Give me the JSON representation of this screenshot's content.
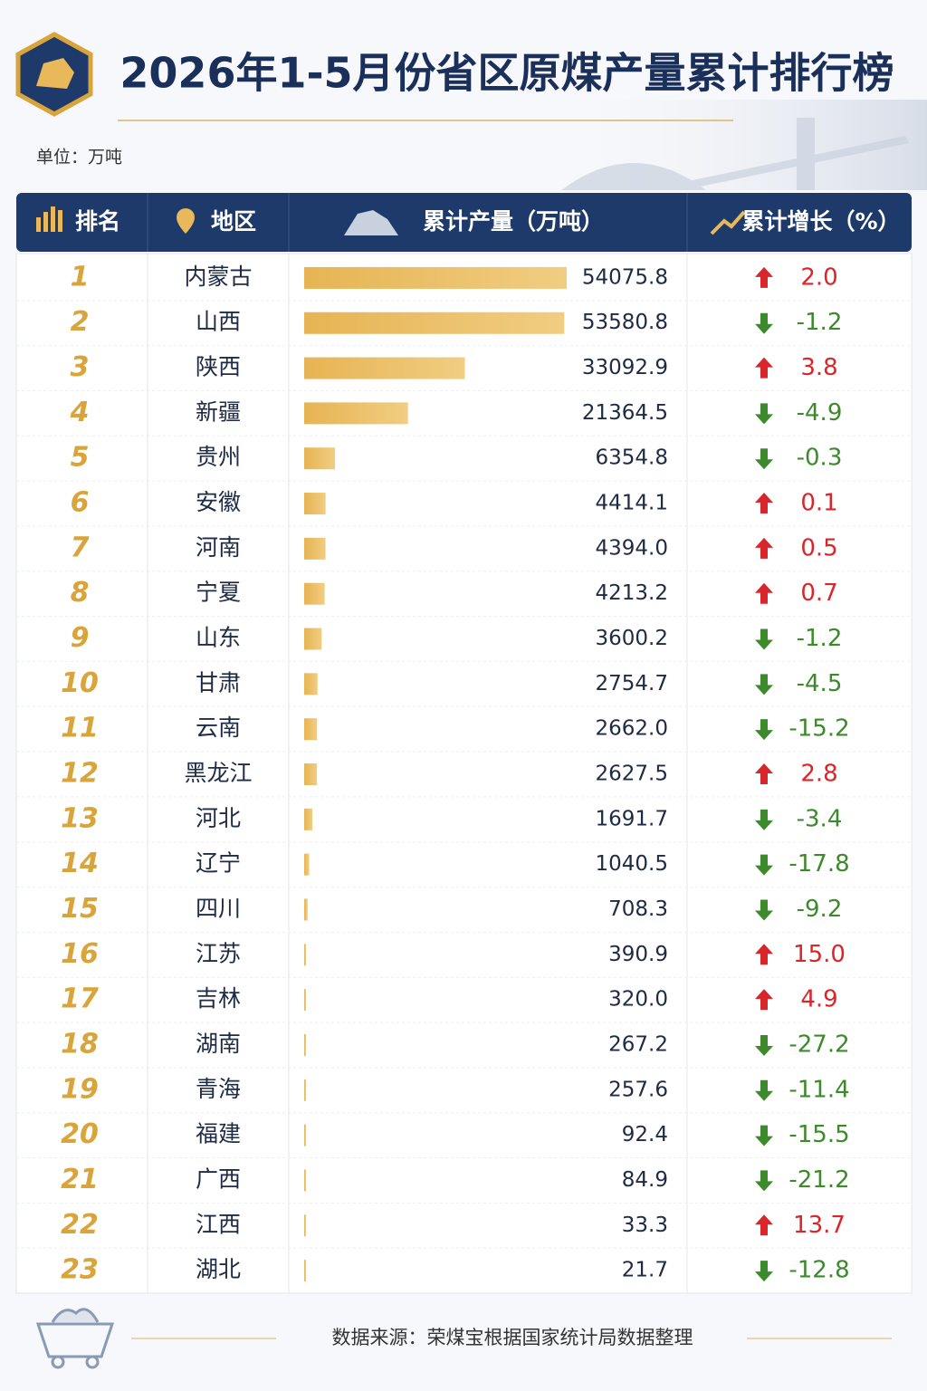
{
  "header": {
    "title": "2026年1-5月份省区原煤产量累计排行榜",
    "unit": "单位：万吨"
  },
  "table": {
    "columns": [
      "排名",
      "地区",
      "累计产量（万吨）",
      "累计增长（%）"
    ],
    "rows": [
      {
        "rank": "1",
        "region": "内蒙古",
        "production": "54075.8",
        "growth": "2.0"
      },
      {
        "rank": "2",
        "region": "山西",
        "production": "53580.8",
        "growth": "-1.2"
      },
      {
        "rank": "3",
        "region": "陕西",
        "production": "33092.9",
        "growth": "3.8"
      },
      {
        "rank": "4",
        "region": "新疆",
        "production": "21364.5",
        "growth": "-4.9"
      },
      {
        "rank": "5",
        "region": "贵州",
        "production": "6354.8",
        "growth": "-0.3"
      },
      {
        "rank": "6",
        "region": "安徽",
        "production": "4414.1",
        "growth": "0.1"
      },
      {
        "rank": "7",
        "region": "河南",
        "production": "4394.0",
        "growth": "0.5"
      },
      {
        "rank": "8",
        "region": "宁夏",
        "production": "4213.2",
        "growth": "0.7"
      },
      {
        "rank": "9",
        "region": "山东",
        "production": "3600.2",
        "growth": "-1.2"
      },
      {
        "rank": "10",
        "region": "甘肃",
        "production": "2754.7",
        "growth": "-4.5"
      },
      {
        "rank": "11",
        "region": "云南",
        "production": "2662.0",
        "growth": "-15.2"
      },
      {
        "rank": "12",
        "region": "黑龙江",
        "production": "2627.5",
        "growth": "2.8"
      },
      {
        "rank": "13",
        "region": "河北",
        "production": "1691.7",
        "growth": "-3.4"
      },
      {
        "rank": "14",
        "region": "辽宁",
        "production": "1040.5",
        "growth": "-17.8"
      },
      {
        "rank": "15",
        "region": "四川",
        "production": "708.3",
        "growth": "-9.2"
      },
      {
        "rank": "16",
        "region": "江苏",
        "production": "390.9",
        "growth": "15.0"
      },
      {
        "rank": "17",
        "region": "吉林",
        "production": "320.0",
        "growth": "4.9"
      },
      {
        "rank": "18",
        "region": "湖南",
        "production": "267.2",
        "growth": "-27.2"
      },
      {
        "rank": "19",
        "region": "青海",
        "production": "257.6",
        "growth": "-11.4"
      },
      {
        "rank": "20",
        "region": "福建",
        "production": "92.4",
        "growth": "-15.5"
      },
      {
        "rank": "21",
        "region": "广西",
        "production": "84.9",
        "growth": "-21.2"
      },
      {
        "rank": "22",
        "region": "江西",
        "production": "33.3",
        "growth": "13.7"
      },
      {
        "rank": "23",
        "region": "湖北",
        "production": "21.7",
        "growth": "-12.8"
      }
    ]
  },
  "footer": {
    "source": "数据来源：荣煤宝根据国家统计局数据整理"
  }
}
